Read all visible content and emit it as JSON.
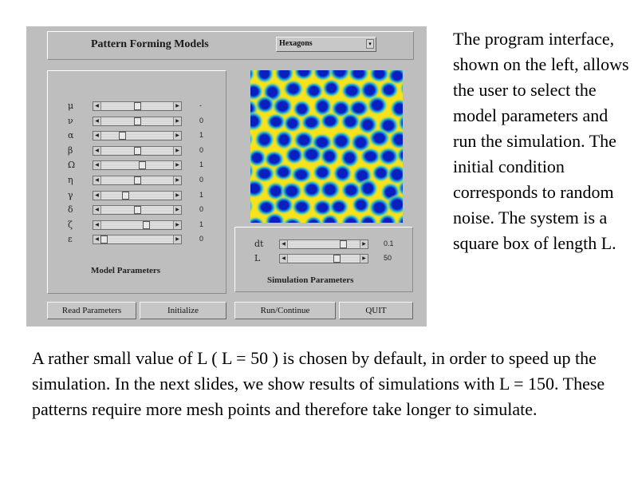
{
  "header": {
    "title": "Pattern Forming Models",
    "model_select": "Hexagons"
  },
  "model_params": {
    "label": "Model Parameters",
    "rows": [
      {
        "symbol": "μ",
        "value": "-",
        "level": 0.5
      },
      {
        "symbol": "ν",
        "value": "0",
        "level": 0.5
      },
      {
        "symbol": "α",
        "value": "1",
        "level": 0.28
      },
      {
        "symbol": "β",
        "value": "0",
        "level": 0.5
      },
      {
        "symbol": "Ω",
        "value": "1",
        "level": 0.58
      },
      {
        "symbol": "η",
        "value": "0",
        "level": 0.5
      },
      {
        "symbol": "γ",
        "value": "1",
        "level": 0.32
      },
      {
        "symbol": "δ",
        "value": "0",
        "level": 0.5
      },
      {
        "symbol": "ζ",
        "value": "1",
        "level": 0.64
      },
      {
        "symbol": "ε",
        "value": "0",
        "level": 0.0
      }
    ]
  },
  "sim_params": {
    "label": "Simulation Parameters",
    "rows": [
      {
        "symbol": "dt",
        "value": "0.1",
        "level": 0.8
      },
      {
        "symbol": "L",
        "value": "50",
        "level": 0.7
      }
    ]
  },
  "buttons": {
    "read": "Read Parameters",
    "init": "Initialize",
    "run": "Run/Continue",
    "quit": "QUIT"
  },
  "text": {
    "side": "The program interface, shown on the left, allows the user to select the model parameters and run the simulation. The initial condition corresponds to random noise. The system is a square box of length L.",
    "bottom": "A rather small value of L ( L = 50 ) is chosen by default, in order to speed up the simulation. In the next slides, we show results of simulations with L = 150. These patterns require more mesh points and therefore take longer to simulate."
  },
  "colors": {
    "pattern_bg": "#f7e21b",
    "pattern_spot": "#0a1fbf",
    "pattern_ring": "#22b7d8"
  }
}
